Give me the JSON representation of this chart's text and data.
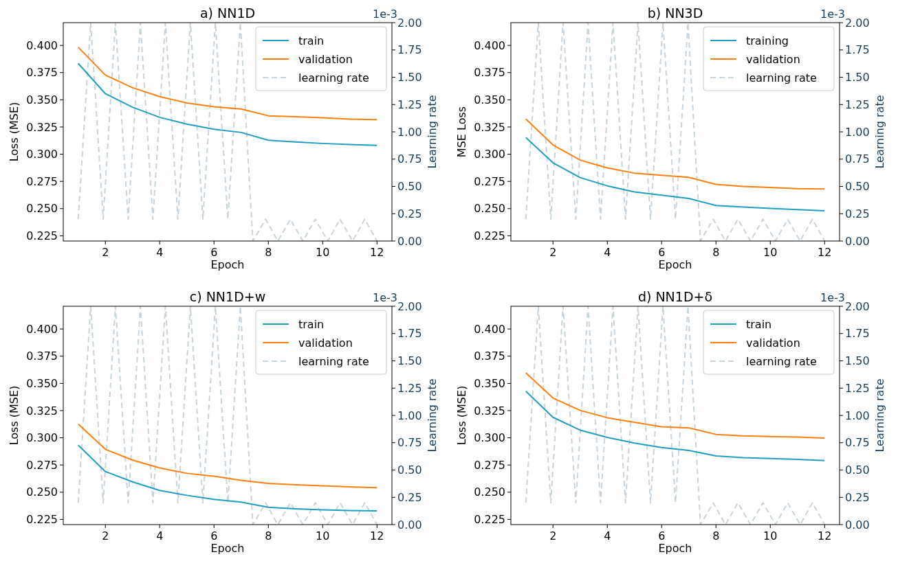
{
  "chart_data": [
    {
      "type": "line",
      "title": "a) NN1D",
      "xlabel": "Epoch",
      "ylabel": "Loss (MSE)",
      "y2label": "Learning rate",
      "annotations": [
        "1e-3"
      ],
      "xlim": [
        0.45,
        12.55
      ],
      "xticks": [
        2,
        4,
        6,
        8,
        10,
        12
      ],
      "ylim": [
        0.2202,
        0.4209
      ],
      "yticks": [
        {
          "value": 0.225,
          "label": "0.225"
        },
        {
          "value": 0.25,
          "label": "0.250"
        },
        {
          "value": 0.275,
          "label": "0.275"
        },
        {
          "value": 0.3,
          "label": "0.300"
        },
        {
          "value": 0.325,
          "label": "0.325"
        },
        {
          "value": 0.35,
          "label": "0.350"
        },
        {
          "value": 0.375,
          "label": "0.375"
        },
        {
          "value": 0.4,
          "label": "0.400"
        }
      ],
      "y2lim": [
        0,
        2
      ],
      "y2ticks": [
        {
          "value": 0,
          "label": "0.00"
        },
        {
          "value": 0.25,
          "label": "0.25"
        },
        {
          "value": 0.5,
          "label": "0.50"
        },
        {
          "value": 0.75,
          "label": "0.75"
        },
        {
          "value": 1,
          "label": "1.00"
        },
        {
          "value": 1.25,
          "label": "1.25"
        },
        {
          "value": 1.5,
          "label": "1.50"
        },
        {
          "value": 1.75,
          "label": "1.75"
        },
        {
          "value": 2,
          "label": "2.00"
        }
      ],
      "legend": "top right",
      "grid": false,
      "series": [
        {
          "name": "train",
          "color": "#1f9ec0",
          "x": [
            1,
            2,
            3,
            4,
            5,
            6,
            7,
            8,
            9,
            10,
            11,
            12
          ],
          "values": [
            0.3835,
            0.3556,
            0.3432,
            0.3339,
            0.3277,
            0.3229,
            0.32,
            0.3128,
            0.3112,
            0.3099,
            0.3089,
            0.3081
          ]
        },
        {
          "name": "validation",
          "color": "#ff7f0e",
          "x": [
            1,
            2,
            3,
            4,
            5,
            6,
            7,
            8,
            9,
            10,
            11,
            12
          ],
          "values": [
            0.3984,
            0.3727,
            0.3612,
            0.3529,
            0.3471,
            0.3436,
            0.3415,
            0.3353,
            0.3345,
            0.3335,
            0.3322,
            0.3318
          ]
        },
        {
          "name": "learning rate",
          "color": "#c8d4dc",
          "axis": "y2",
          "line_style": "dashed",
          "x": [
            1,
            1.46,
            1.92,
            2.37,
            2.84,
            3.29,
            3.75,
            4.21,
            4.67,
            5.13,
            5.59,
            6.05,
            6.51,
            6.97,
            7.43,
            7.9,
            8.35,
            8.81,
            9.27,
            9.73,
            10.19,
            10.64,
            11.1,
            11.55,
            12
          ],
          "values": [
            0.2,
            2,
            0.2,
            2,
            0.2,
            2,
            0.2,
            2,
            0.2,
            2,
            0.2,
            2,
            0.2,
            2,
            0,
            0.2,
            0,
            0.2,
            0,
            0.2,
            0,
            0.2,
            0,
            0.2,
            0
          ]
        }
      ]
    },
    {
      "type": "line",
      "title": "b) NN3D",
      "xlabel": "Epoch",
      "ylabel": "MSE Loss",
      "y2label": "Learning rate",
      "annotations": [
        "1e-3"
      ],
      "xlim": [
        0.45,
        12.55
      ],
      "xticks": [
        2,
        4,
        6,
        8,
        10,
        12
      ],
      "ylim": [
        0.2202,
        0.4209
      ],
      "yticks": [
        {
          "value": 0.225,
          "label": "0.225"
        },
        {
          "value": 0.25,
          "label": "0.250"
        },
        {
          "value": 0.275,
          "label": "0.275"
        },
        {
          "value": 0.3,
          "label": "0.300"
        },
        {
          "value": 0.325,
          "label": "0.325"
        },
        {
          "value": 0.35,
          "label": "0.350"
        },
        {
          "value": 0.375,
          "label": "0.375"
        },
        {
          "value": 0.4,
          "label": "0.400"
        }
      ],
      "y2lim": [
        0,
        2
      ],
      "y2ticks": [
        {
          "value": 0,
          "label": "0.00"
        },
        {
          "value": 0.25,
          "label": "0.25"
        },
        {
          "value": 0.5,
          "label": "0.50"
        },
        {
          "value": 0.75,
          "label": "0.75"
        },
        {
          "value": 1,
          "label": "1.00"
        },
        {
          "value": 1.25,
          "label": "1.25"
        },
        {
          "value": 1.5,
          "label": "1.50"
        },
        {
          "value": 1.75,
          "label": "1.75"
        },
        {
          "value": 2,
          "label": "2.00"
        }
      ],
      "legend": "top right",
      "grid": false,
      "series": [
        {
          "name": "training",
          "color": "#1f9ec0",
          "x": [
            1,
            2,
            3,
            4,
            5,
            6,
            7,
            8,
            9,
            10,
            11,
            12
          ],
          "values": [
            0.3153,
            0.2921,
            0.2785,
            0.2709,
            0.2653,
            0.2624,
            0.2593,
            0.2529,
            0.2514,
            0.2502,
            0.249,
            0.2479
          ]
        },
        {
          "name": "validation",
          "color": "#ff7f0e",
          "x": [
            1,
            2,
            3,
            4,
            5,
            6,
            7,
            8,
            9,
            10,
            11,
            12
          ],
          "values": [
            0.3324,
            0.3085,
            0.2946,
            0.2874,
            0.2826,
            0.2806,
            0.2787,
            0.2723,
            0.2704,
            0.2694,
            0.2684,
            0.268
          ]
        },
        {
          "name": "learning rate",
          "color": "#c8d4dc",
          "axis": "y2",
          "line_style": "dashed",
          "x": [
            1,
            1.46,
            1.92,
            2.37,
            2.84,
            3.29,
            3.75,
            4.21,
            4.67,
            5.13,
            5.59,
            6.05,
            6.51,
            6.97,
            7.43,
            7.9,
            8.35,
            8.81,
            9.27,
            9.73,
            10.19,
            10.64,
            11.1,
            11.55,
            12
          ],
          "values": [
            0.2,
            2,
            0.2,
            2,
            0.2,
            2,
            0.2,
            2,
            0.2,
            2,
            0.2,
            2,
            0.2,
            2,
            0,
            0.2,
            0,
            0.2,
            0,
            0.2,
            0,
            0.2,
            0,
            0.2,
            0
          ]
        }
      ]
    },
    {
      "type": "line",
      "title": "c) NN1D+w",
      "xlabel": "Epoch",
      "ylabel": "Loss (MSE)",
      "y2label": "Learning rate",
      "annotations": [
        "1e-3"
      ],
      "xlim": [
        0.45,
        12.55
      ],
      "xticks": [
        2,
        4,
        6,
        8,
        10,
        12
      ],
      "ylim": [
        0.2202,
        0.4209
      ],
      "yticks": [
        {
          "value": 0.225,
          "label": "0.225"
        },
        {
          "value": 0.25,
          "label": "0.250"
        },
        {
          "value": 0.275,
          "label": "0.275"
        },
        {
          "value": 0.3,
          "label": "0.300"
        },
        {
          "value": 0.325,
          "label": "0.325"
        },
        {
          "value": 0.35,
          "label": "0.350"
        },
        {
          "value": 0.375,
          "label": "0.375"
        },
        {
          "value": 0.4,
          "label": "0.400"
        }
      ],
      "y2lim": [
        0,
        2
      ],
      "y2ticks": [
        {
          "value": 0,
          "label": "0.00"
        },
        {
          "value": 0.25,
          "label": "0.25"
        },
        {
          "value": 0.5,
          "label": "0.50"
        },
        {
          "value": 0.75,
          "label": "0.75"
        },
        {
          "value": 1,
          "label": "1.00"
        },
        {
          "value": 1.25,
          "label": "1.25"
        },
        {
          "value": 1.5,
          "label": "1.50"
        },
        {
          "value": 1.75,
          "label": "1.75"
        },
        {
          "value": 2,
          "label": "2.00"
        }
      ],
      "legend": "top right",
      "grid": false,
      "series": [
        {
          "name": "train",
          "color": "#1f9ec0",
          "x": [
            1,
            2,
            3,
            4,
            5,
            6,
            7,
            8,
            9,
            10,
            11,
            12
          ],
          "values": [
            0.2932,
            0.269,
            0.2595,
            0.2516,
            0.2471,
            0.2434,
            0.2409,
            0.2361,
            0.2347,
            0.2338,
            0.2332,
            0.2328
          ]
        },
        {
          "name": "validation",
          "color": "#ff7f0e",
          "x": [
            1,
            2,
            3,
            4,
            5,
            6,
            7,
            8,
            9,
            10,
            11,
            12
          ],
          "values": [
            0.3126,
            0.2894,
            0.2795,
            0.2723,
            0.2673,
            0.2647,
            0.2609,
            0.258,
            0.2568,
            0.2558,
            0.2549,
            0.2541
          ]
        },
        {
          "name": "learning rate",
          "color": "#c8d4dc",
          "axis": "y2",
          "line_style": "dashed",
          "x": [
            1,
            1.46,
            1.92,
            2.37,
            2.84,
            3.29,
            3.75,
            4.21,
            4.67,
            5.13,
            5.59,
            6.05,
            6.51,
            6.97,
            7.43,
            7.9,
            8.35,
            8.81,
            9.27,
            9.73,
            10.19,
            10.64,
            11.1,
            11.55,
            12
          ],
          "values": [
            0.2,
            2,
            0.2,
            2,
            0.2,
            2,
            0.2,
            2,
            0.2,
            2,
            0.2,
            2,
            0.2,
            2,
            0,
            0.2,
            0,
            0.2,
            0,
            0.2,
            0,
            0.2,
            0,
            0.2,
            0
          ]
        }
      ]
    },
    {
      "type": "line",
      "title": "d) NN1D+δ",
      "xlabel": "Epoch",
      "ylabel": "Loss (MSE)",
      "y2label": "Learning rate",
      "annotations": [
        "1e-3"
      ],
      "xlim": [
        0.45,
        12.55
      ],
      "xticks": [
        2,
        4,
        6,
        8,
        10,
        12
      ],
      "ylim": [
        0.2202,
        0.4209
      ],
      "yticks": [
        {
          "value": 0.225,
          "label": "0.225"
        },
        {
          "value": 0.25,
          "label": "0.250"
        },
        {
          "value": 0.275,
          "label": "0.275"
        },
        {
          "value": 0.3,
          "label": "0.300"
        },
        {
          "value": 0.325,
          "label": "0.325"
        },
        {
          "value": 0.35,
          "label": "0.350"
        },
        {
          "value": 0.375,
          "label": "0.375"
        },
        {
          "value": 0.4,
          "label": "0.400"
        }
      ],
      "y2lim": [
        0,
        2
      ],
      "y2ticks": [
        {
          "value": 0,
          "label": "0.00"
        },
        {
          "value": 0.25,
          "label": "0.25"
        },
        {
          "value": 0.5,
          "label": "0.50"
        },
        {
          "value": 0.75,
          "label": "0.75"
        },
        {
          "value": 1,
          "label": "1.00"
        },
        {
          "value": 1.25,
          "label": "1.25"
        },
        {
          "value": 1.5,
          "label": "1.50"
        },
        {
          "value": 1.75,
          "label": "1.75"
        },
        {
          "value": 2,
          "label": "2.00"
        }
      ],
      "legend": "top right",
      "grid": false,
      "series": [
        {
          "name": "train",
          "color": "#1f9ec0",
          "x": [
            1,
            2,
            3,
            4,
            5,
            6,
            7,
            8,
            9,
            10,
            11,
            12
          ],
          "values": [
            0.3428,
            0.3188,
            0.307,
            0.3004,
            0.2952,
            0.2911,
            0.2884,
            0.2833,
            0.2818,
            0.281,
            0.2802,
            0.2791
          ]
        },
        {
          "name": "validation",
          "color": "#ff7f0e",
          "x": [
            1,
            2,
            3,
            4,
            5,
            6,
            7,
            8,
            9,
            10,
            11,
            12
          ],
          "values": [
            0.3597,
            0.3366,
            0.3252,
            0.3184,
            0.3143,
            0.3101,
            0.3091,
            0.3031,
            0.3018,
            0.3012,
            0.3006,
            0.2998
          ]
        },
        {
          "name": "learning rate",
          "color": "#c8d4dc",
          "axis": "y2",
          "line_style": "dashed",
          "x": [
            1,
            1.46,
            1.92,
            2.37,
            2.84,
            3.29,
            3.75,
            4.21,
            4.67,
            5.13,
            5.59,
            6.05,
            6.51,
            6.97,
            7.43,
            7.9,
            8.35,
            8.81,
            9.27,
            9.73,
            10.19,
            10.64,
            11.1,
            11.55,
            12
          ],
          "values": [
            0.2,
            2,
            0.2,
            2,
            0.2,
            2,
            0.2,
            2,
            0.2,
            2,
            0.2,
            2,
            0.2,
            2,
            0,
            0.2,
            0,
            0.2,
            0,
            0.2,
            0,
            0.2,
            0,
            0.2,
            0
          ]
        }
      ]
    }
  ]
}
